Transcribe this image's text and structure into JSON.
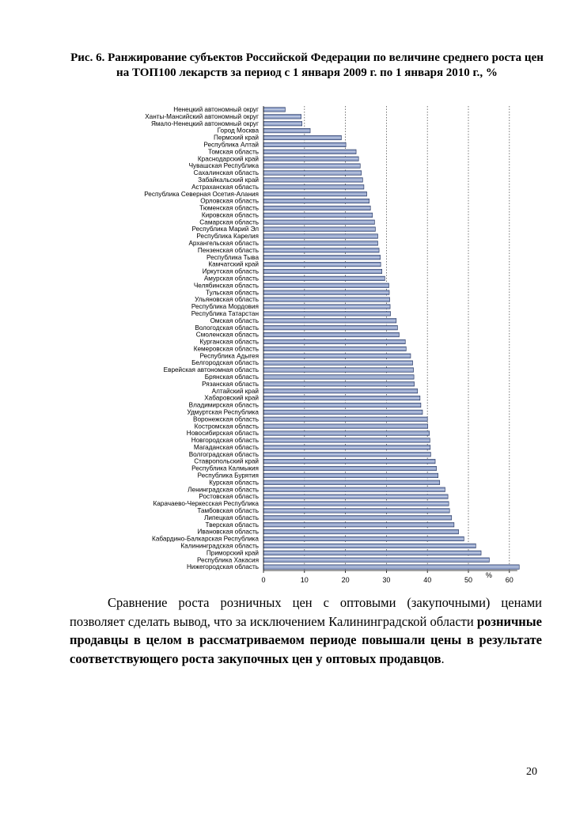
{
  "caption": "Рис. 6. Ранжирование субъектов Российской Федерации по величине среднего роста цен на ТОП100 лекарств за период с 1 января 2009 г. по 1 января 2010 г., %",
  "paragraph": {
    "normal": "Сравнение роста розничных цен с оптовыми (закупочными) ценами позволяет сделать вывод, что за исключением Калининградской области ",
    "bold": "розничные продавцы в целом в рассматриваемом периоде повышали цены в результате соответствующего роста закупочных цен у оптовых продавцов",
    "end": "."
  },
  "page_number": "20",
  "chart_data": {
    "type": "bar",
    "orientation": "horizontal",
    "xlabel": "%",
    "xlim": [
      0,
      60
    ],
    "xticks": [
      0,
      10,
      20,
      30,
      40,
      50,
      60
    ],
    "grid": "vertical dotted",
    "legend": "none",
    "bar_color": "#8fa0c8",
    "categories": [
      "Ненецкий автономный округ",
      "Ханты-Мансийский автономный округ",
      "Ямало-Ненецкий автономный округ",
      "Город Москва",
      "Пермский край",
      "Республика Алтай",
      "Томская область",
      "Краснодарский край",
      "Чувашская Республика",
      "Сахалинская область",
      "Забайкальский край",
      "Астраханская область",
      "Республика Северная Осетия-Алания",
      "Орловская область",
      "Тюменская область",
      "Кировская область",
      "Самарская область",
      "Республика Марий Эл",
      "Республика Карелия",
      "Архангельская область",
      "Пензенская область",
      "Республика Тыва",
      "Камчатский край",
      "Иркутская область",
      "Амурская область",
      "Челябинская область",
      "Тульская область",
      "Ульяновская область",
      "Республика Мордовия",
      "Республика Татарстан",
      "Омская область",
      "Вологодская область",
      "Смоленская область",
      "Курганская область",
      "Кемеровская область",
      "Республика Адыгея",
      "Белгородская область",
      "Еврейская автономная область",
      "Брянская область",
      "Рязанская область",
      "Алтайский край",
      "Хабаровский край",
      "Владимирская область",
      "Удмуртская Республика",
      "Воронежская область",
      "Костромская область",
      "Новосибирская область",
      "Новгородская область",
      "Магаданская область",
      "Волгоградская область",
      "Ставропольский край",
      "Республика Калмыкия",
      "Республика Бурятия",
      "Курская область",
      "Ленинградская область",
      "Ростовская область",
      "Карачаево-Черкесская Республика",
      "Тамбовская область",
      "Липецкая область",
      "Тверская область",
      "Ивановская область",
      "Кабардино-Балкарская Республика",
      "Калининградская область",
      "Приморский край",
      "Республика Хакасия",
      "Нижегородская область"
    ],
    "values": [
      5.3,
      9.2,
      9.4,
      11.4,
      19.0,
      20.1,
      22.6,
      23.2,
      23.6,
      23.9,
      24.2,
      24.5,
      25.2,
      25.8,
      26.1,
      26.6,
      27.1,
      27.3,
      27.9,
      27.9,
      28.2,
      28.5,
      28.6,
      28.9,
      29.6,
      30.6,
      30.7,
      30.8,
      30.9,
      31.0,
      32.4,
      32.7,
      33.1,
      34.6,
      34.8,
      35.9,
      36.4,
      36.6,
      36.7,
      36.8,
      37.6,
      38.2,
      38.4,
      38.8,
      40.0,
      40.1,
      40.5,
      40.6,
      40.7,
      40.8,
      41.9,
      42.2,
      42.6,
      43.0,
      44.3,
      45.0,
      45.2,
      45.4,
      45.9,
      46.5,
      47.6,
      48.9,
      51.8,
      53.1,
      55.1,
      62.4
    ]
  }
}
